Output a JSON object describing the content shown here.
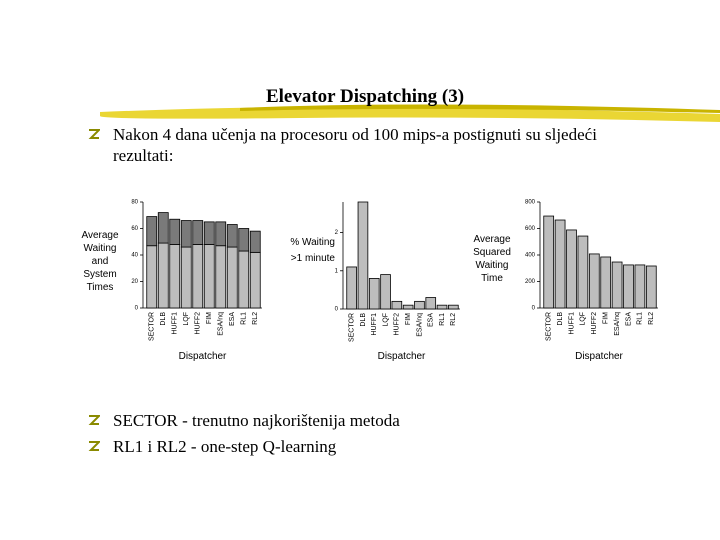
{
  "title": "Elevator Dispatching (3)",
  "bullets": [
    "Nakon 4 dana učenja na procesoru od 100 mips-a postignuti su sljedeći rezultati:",
    "SECTOR - trenutno najkorištenija metoda",
    "RL1 i RL2 - one-step Q-learning"
  ],
  "chart_data": [
    {
      "type": "stacked_bar",
      "ylabel": [
        "Average",
        "Waiting",
        "and",
        "System",
        "Times"
      ],
      "xlabel": "Dispatcher",
      "categories": [
        "SECTOR",
        "DLB",
        "HUFF1",
        "LQF",
        "HUFF2",
        "FIM",
        "ESA/nq",
        "ESA",
        "RL1",
        "RL2"
      ],
      "series": [
        {
          "color": "#bdbdbd",
          "values": [
            47,
            49,
            48,
            46,
            48,
            48,
            47,
            46,
            43,
            42
          ]
        },
        {
          "color": "#7a7a7a",
          "values": [
            22,
            23,
            19,
            20,
            18,
            17,
            18,
            17,
            17,
            16
          ]
        }
      ],
      "ylim": [
        0,
        80
      ],
      "yticks": [
        0,
        20,
        40,
        60,
        80
      ]
    },
    {
      "type": "bar",
      "ylabel": [
        "% Waiting",
        ">1 minute"
      ],
      "xlabel": "Dispatcher",
      "categories": [
        "SECTOR",
        "DLB",
        "HUFF1",
        "LQF",
        "HUFF2",
        "FIM",
        "ESA/nq",
        "ESA",
        "RL1",
        "RL2"
      ],
      "values": [
        1.1,
        2.8,
        0.8,
        0.9,
        0.2,
        0.1,
        0.2,
        0.3,
        0.1,
        0.1
      ],
      "color": "#bdbdbd",
      "ylim": [
        0,
        2.8
      ],
      "yticks": [
        0,
        1,
        2
      ]
    },
    {
      "type": "bar",
      "ylabel": [
        "Average",
        "Squared",
        "Waiting",
        "Time"
      ],
      "xlabel": "Dispatcher",
      "categories": [
        "SECTOR",
        "DLB",
        "HUFF1",
        "LQF",
        "HUFF2",
        "FIM",
        "ESA/nq",
        "ESA",
        "RL1",
        "RL2"
      ],
      "values": [
        694,
        664,
        589,
        543,
        408,
        385,
        347,
        325,
        325,
        317
      ],
      "color": "#bdbdbd",
      "ylim": [
        0,
        800
      ],
      "yticks": [
        0,
        200,
        400,
        600,
        800
      ]
    }
  ]
}
